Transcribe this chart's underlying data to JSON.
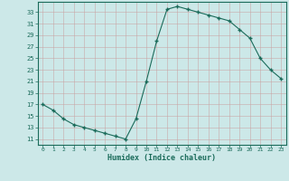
{
  "x": [
    0,
    1,
    2,
    3,
    4,
    5,
    6,
    7,
    8,
    9,
    10,
    11,
    12,
    13,
    14,
    15,
    16,
    17,
    18,
    19,
    20,
    21,
    22,
    23
  ],
  "y": [
    17,
    16,
    14.5,
    13.5,
    13,
    12.5,
    12,
    11.5,
    11,
    14.5,
    21,
    28,
    33.5,
    34,
    33.5,
    33,
    32.5,
    32,
    31.5,
    30,
    28.5,
    25,
    23,
    21.5
  ],
  "line_color": "#1a6b5a",
  "marker_color": "#1a6b5a",
  "bg_color": "#cce8e8",
  "grid_color": "#b0d4d4",
  "xlabel": "Humidex (Indice chaleur)",
  "yticks": [
    11,
    13,
    15,
    17,
    19,
    21,
    23,
    25,
    27,
    29,
    31,
    33
  ],
  "ylim": [
    10.0,
    34.8
  ],
  "xlim": [
    -0.5,
    23.5
  ]
}
